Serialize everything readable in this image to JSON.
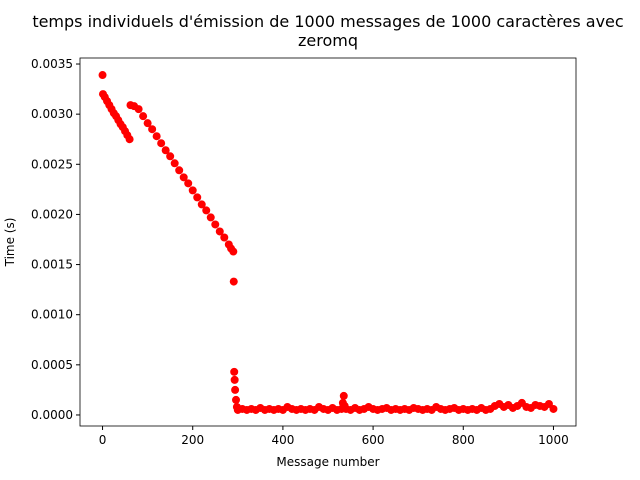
{
  "chart_data": {
    "type": "scatter",
    "title": "temps individuels d'émission de 1000 messages de 1000 caractères avec zeromq",
    "x_label": "Message number",
    "y_label": "Time (s)",
    "color": "#ff0000",
    "xlim": [
      -50,
      1050
    ],
    "ylim": [
      -0.00011,
      0.00356
    ],
    "xticks": [
      0,
      200,
      400,
      600,
      800,
      1000
    ],
    "yticks": [
      {
        "value": 0,
        "label": "0.0000"
      },
      {
        "value": 0.0005,
        "label": "0.0005"
      },
      {
        "value": 0.001,
        "label": "0.0010"
      },
      {
        "value": 0.0015,
        "label": "0.0015"
      },
      {
        "value": 0.002,
        "label": "0.0020"
      },
      {
        "value": 0.0025,
        "label": "0.0025"
      },
      {
        "value": 0.003,
        "label": "0.0030"
      },
      {
        "value": 0.0035,
        "label": "0.0035"
      }
    ],
    "x": [
      0,
      1,
      5,
      10,
      15,
      20,
      25,
      30,
      35,
      40,
      45,
      50,
      55,
      60,
      62,
      70,
      80,
      90,
      100,
      110,
      120,
      130,
      140,
      150,
      160,
      170,
      180,
      190,
      200,
      210,
      220,
      230,
      240,
      250,
      260,
      270,
      280,
      285,
      290,
      291,
      292,
      293,
      294,
      296,
      298,
      300,
      310,
      320,
      330,
      340,
      350,
      360,
      370,
      380,
      390,
      400,
      410,
      420,
      430,
      440,
      450,
      460,
      470,
      480,
      490,
      500,
      510,
      520,
      530,
      533,
      535,
      537,
      540,
      550,
      560,
      570,
      580,
      590,
      600,
      610,
      620,
      630,
      640,
      650,
      660,
      670,
      680,
      690,
      700,
      710,
      720,
      730,
      740,
      750,
      760,
      770,
      780,
      790,
      800,
      810,
      820,
      830,
      840,
      850,
      860,
      870,
      880,
      890,
      900,
      910,
      920,
      930,
      940,
      950,
      960,
      970,
      980,
      990,
      1000
    ],
    "y": [
      0.00339,
      0.0032,
      0.00317,
      0.00313,
      0.00309,
      0.00305,
      0.00301,
      0.00298,
      0.00294,
      0.0029,
      0.00287,
      0.00283,
      0.00279,
      0.00275,
      0.00309,
      0.00308,
      0.00305,
      0.00298,
      0.00291,
      0.00285,
      0.00278,
      0.00271,
      0.00264,
      0.00258,
      0.00251,
      0.00244,
      0.00237,
      0.00231,
      0.00224,
      0.00217,
      0.0021,
      0.00204,
      0.00197,
      0.0019,
      0.00183,
      0.00177,
      0.0017,
      0.00166,
      0.00163,
      0.00133,
      0.00043,
      0.00035,
      0.00025,
      0.00015,
      8e-05,
      5e-05,
      6e-05,
      5e-05,
      6e-05,
      5e-05,
      7e-05,
      5e-05,
      6e-05,
      5e-05,
      6e-05,
      5e-05,
      8e-05,
      6e-05,
      5e-05,
      6e-05,
      5e-05,
      6e-05,
      5e-05,
      8e-05,
      6e-05,
      5e-05,
      7e-05,
      5e-05,
      6e-05,
      0.00012,
      0.00019,
      9e-05,
      6e-05,
      5e-05,
      7e-05,
      5e-05,
      6e-05,
      8e-05,
      6e-05,
      5e-05,
      6e-05,
      7e-05,
      5e-05,
      6e-05,
      5e-05,
      6e-05,
      5e-05,
      7e-05,
      6e-05,
      5e-05,
      6e-05,
      5e-05,
      8e-05,
      6e-05,
      5e-05,
      6e-05,
      7e-05,
      5e-05,
      6e-05,
      5e-05,
      6e-05,
      5e-05,
      7e-05,
      5e-05,
      6e-05,
      9e-05,
      0.00011,
      8e-05,
      0.0001,
      7e-05,
      9e-05,
      0.00012,
      8e-05,
      7e-05,
      0.0001,
      9e-05,
      8e-05,
      0.00011,
      6e-05
    ]
  }
}
